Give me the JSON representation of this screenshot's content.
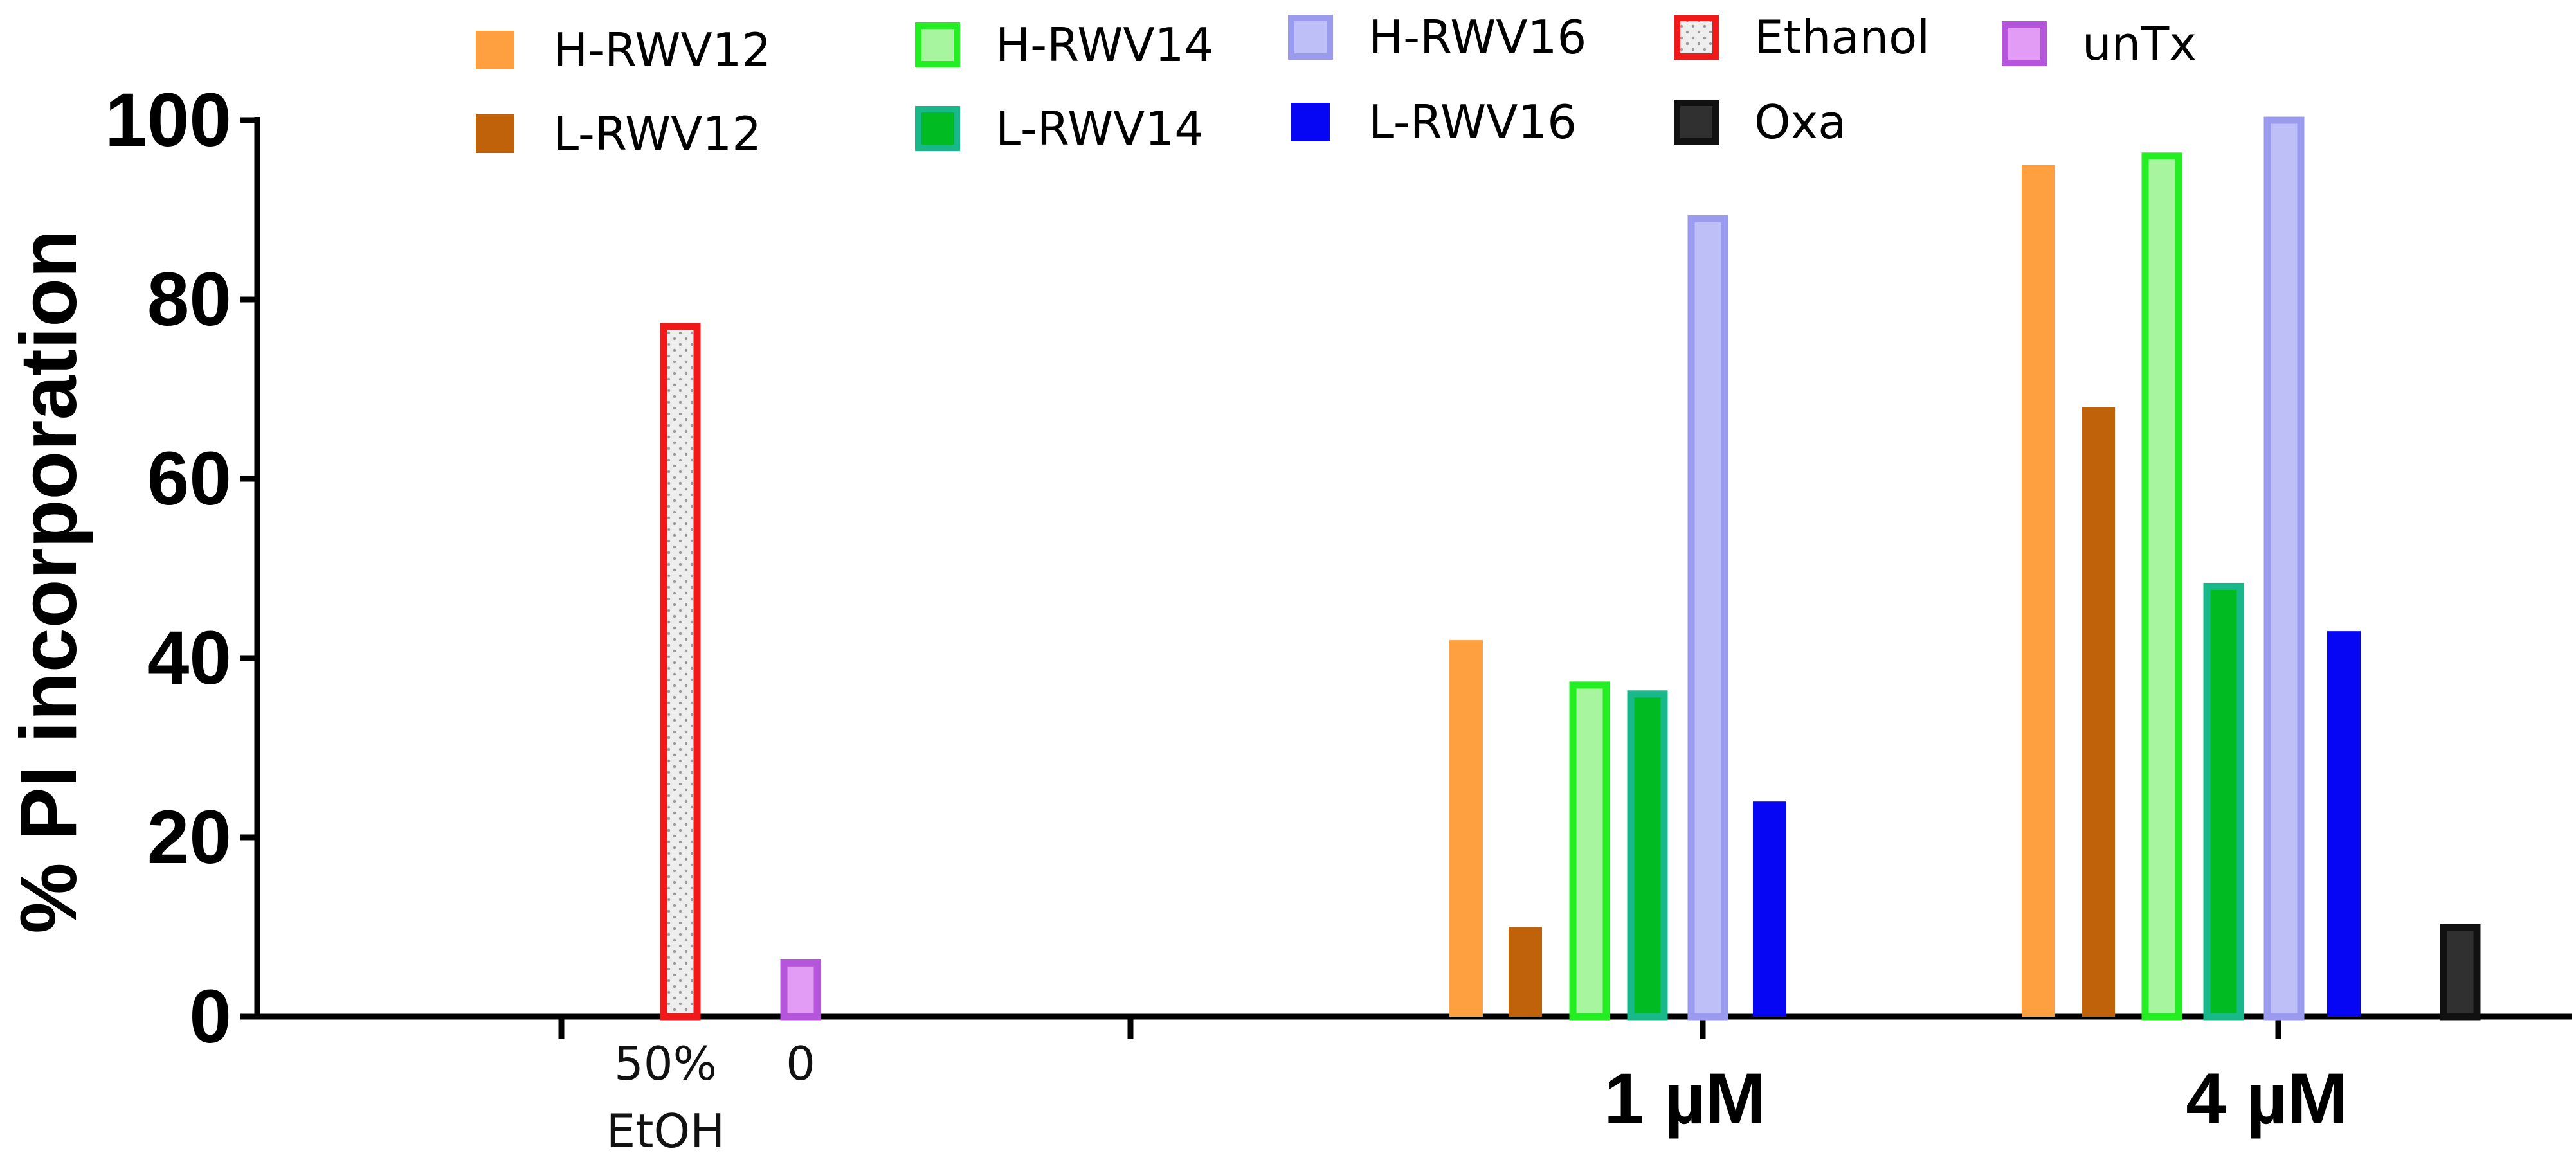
{
  "chart_data": {
    "type": "bar",
    "title": "",
    "xlabel": "",
    "ylabel": "% PI incorporation",
    "ylim": [
      0,
      100
    ],
    "yticks": [
      0,
      20,
      40,
      60,
      80,
      100
    ],
    "ytick_labels": [
      "0",
      "20",
      "40",
      "60",
      "80",
      "100"
    ],
    "grid": false,
    "legend_position": "top",
    "groups": [
      {
        "key": "etoh",
        "line1": "50%",
        "line2": "EtOH"
      },
      {
        "key": "zero",
        "line1": "0"
      },
      {
        "key": "one",
        "line1": "1 µM"
      },
      {
        "key": "four",
        "line1": "4 µM"
      }
    ],
    "series": [
      {
        "name": "H-RWV12",
        "fill": "#ffa040",
        "stroke": "#ffa040",
        "pattern": "",
        "values": {
          "one": 42,
          "four": 95
        }
      },
      {
        "name": "L-RWV12",
        "fill": "#c0620a",
        "stroke": "#c0620a",
        "pattern": "",
        "values": {
          "one": 10,
          "four": 68
        }
      },
      {
        "name": "H-RWV14",
        "fill": "#a8f5a0",
        "stroke": "#22ee22",
        "pattern": "",
        "values": {
          "one": 37,
          "four": 96
        }
      },
      {
        "name": "L-RWV14",
        "fill": "#00bb22",
        "stroke": "#19b88a",
        "pattern": "",
        "values": {
          "one": 36,
          "four": 48
        }
      },
      {
        "name": "H-RWV16",
        "fill": "#bfbff8",
        "stroke": "#9a9aee",
        "pattern": "",
        "values": {
          "one": 89,
          "four": 100
        }
      },
      {
        "name": "L-RWV16",
        "fill": "#0606f4",
        "stroke": "#0606f4",
        "pattern": "",
        "values": {
          "one": 24,
          "four": 43
        }
      },
      {
        "name": "Ethanol",
        "fill": "#eeeeee",
        "stroke": "#f01818",
        "pattern": "dots",
        "values": {
          "etoh": 77
        }
      },
      {
        "name": "Oxa",
        "fill": "#303030",
        "stroke": "#111111",
        "pattern": "",
        "values": {
          "four": 10
        }
      },
      {
        "name": "unTx",
        "fill": "#e39cf6",
        "stroke": "#b455db",
        "pattern": "",
        "values": {
          "zero": 6
        }
      }
    ]
  }
}
